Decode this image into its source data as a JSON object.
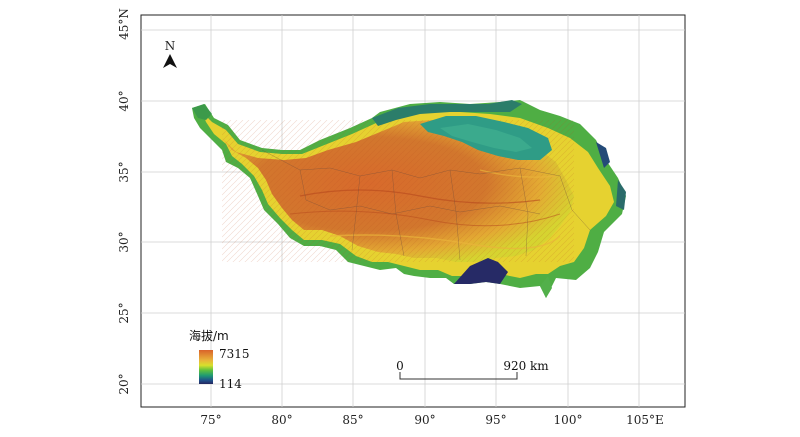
{
  "map": {
    "north_arrow_label": "N",
    "lon_ticks": [
      "75°",
      "80°",
      "85°",
      "90°",
      "95°",
      "100°",
      "105°E"
    ],
    "lat_ticks": [
      "45°N",
      "40°",
      "35°",
      "30°",
      "25°",
      "20°"
    ],
    "legend": {
      "title": "海拔/m",
      "max_label": "7315",
      "min_label": "114",
      "colors": [
        "#d9622a",
        "#e9b33a",
        "#d8e02c",
        "#5cbf3e",
        "#1f9a73",
        "#1f4d8a",
        "#25265e"
      ]
    },
    "scale_bar": {
      "start_label": "0",
      "end_label": "920 km"
    },
    "colors": {
      "high": "#cf5a26",
      "mid_high": "#e39a33",
      "mid": "#e8d530",
      "low_mid": "#7dc340",
      "low": "#2fa06e",
      "basin": "#3d9a8c",
      "lowest": "#262a66"
    }
  }
}
